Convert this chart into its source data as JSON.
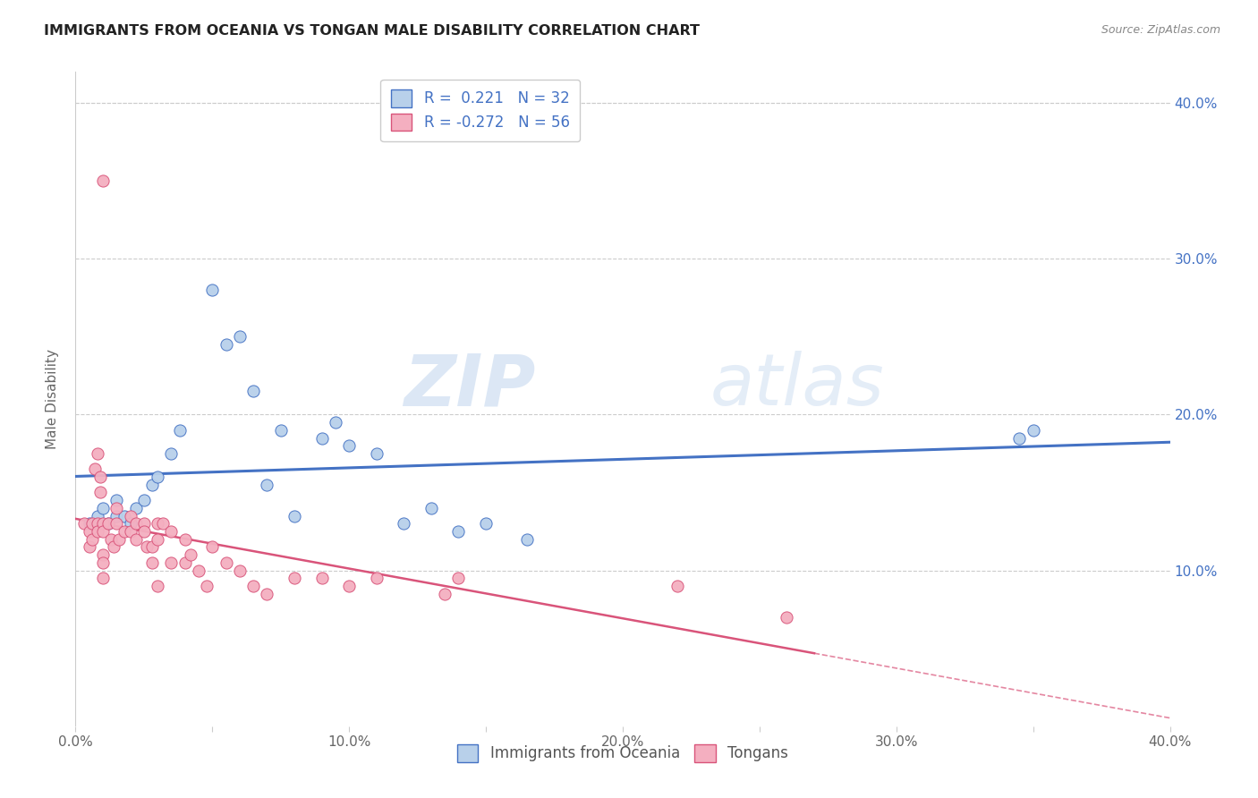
{
  "title": "IMMIGRANTS FROM OCEANIA VS TONGAN MALE DISABILITY CORRELATION CHART",
  "source": "Source: ZipAtlas.com",
  "ylabel": "Male Disability",
  "xlim": [
    0.0,
    0.4
  ],
  "ylim": [
    0.0,
    0.42
  ],
  "xtick_labels": [
    "0.0%",
    "",
    "10.0%",
    "",
    "20.0%",
    "",
    "30.0%",
    "",
    "40.0%"
  ],
  "xtick_vals": [
    0.0,
    0.05,
    0.1,
    0.15,
    0.2,
    0.25,
    0.3,
    0.35,
    0.4
  ],
  "ytick_labels_right": [
    "40.0%",
    "30.0%",
    "20.0%",
    "10.0%"
  ],
  "ytick_vals": [
    0.4,
    0.3,
    0.2,
    0.1
  ],
  "series1_color": "#b8d0ea",
  "series2_color": "#f4afc0",
  "line1_color": "#4472c4",
  "line2_color": "#d9547a",
  "watermark_color": "#dce8f5",
  "legend_R1": "R =  0.221",
  "legend_N1": "N = 32",
  "legend_R2": "R = -0.272",
  "legend_N2": "N = 56",
  "series1_x": [
    0.005,
    0.008,
    0.01,
    0.012,
    0.015,
    0.015,
    0.018,
    0.02,
    0.022,
    0.025,
    0.028,
    0.03,
    0.035,
    0.038,
    0.05,
    0.055,
    0.06,
    0.065,
    0.07,
    0.075,
    0.08,
    0.09,
    0.095,
    0.1,
    0.11,
    0.12,
    0.13,
    0.14,
    0.15,
    0.165,
    0.345,
    0.35
  ],
  "series1_y": [
    0.13,
    0.135,
    0.14,
    0.13,
    0.135,
    0.145,
    0.135,
    0.13,
    0.14,
    0.145,
    0.155,
    0.16,
    0.175,
    0.19,
    0.28,
    0.245,
    0.25,
    0.215,
    0.155,
    0.19,
    0.135,
    0.185,
    0.195,
    0.18,
    0.175,
    0.13,
    0.14,
    0.125,
    0.13,
    0.12,
    0.185,
    0.19
  ],
  "series2_x": [
    0.003,
    0.005,
    0.005,
    0.006,
    0.006,
    0.007,
    0.008,
    0.008,
    0.008,
    0.009,
    0.009,
    0.01,
    0.01,
    0.01,
    0.01,
    0.01,
    0.012,
    0.013,
    0.014,
    0.015,
    0.015,
    0.016,
    0.018,
    0.02,
    0.02,
    0.022,
    0.022,
    0.025,
    0.025,
    0.026,
    0.028,
    0.028,
    0.03,
    0.03,
    0.03,
    0.032,
    0.035,
    0.035,
    0.04,
    0.04,
    0.042,
    0.045,
    0.048,
    0.05,
    0.055,
    0.06,
    0.065,
    0.07,
    0.08,
    0.09,
    0.1,
    0.11,
    0.135,
    0.14,
    0.22,
    0.26
  ],
  "series2_y": [
    0.13,
    0.125,
    0.115,
    0.13,
    0.12,
    0.165,
    0.175,
    0.13,
    0.125,
    0.15,
    0.16,
    0.13,
    0.125,
    0.11,
    0.105,
    0.095,
    0.13,
    0.12,
    0.115,
    0.14,
    0.13,
    0.12,
    0.125,
    0.135,
    0.125,
    0.13,
    0.12,
    0.13,
    0.125,
    0.115,
    0.105,
    0.115,
    0.13,
    0.12,
    0.09,
    0.13,
    0.125,
    0.105,
    0.12,
    0.105,
    0.11,
    0.1,
    0.09,
    0.115,
    0.105,
    0.1,
    0.09,
    0.085,
    0.095,
    0.095,
    0.09,
    0.095,
    0.085,
    0.095,
    0.09,
    0.07
  ],
  "series2_outlier_x": [
    0.01
  ],
  "series2_outlier_y": [
    0.35
  ]
}
